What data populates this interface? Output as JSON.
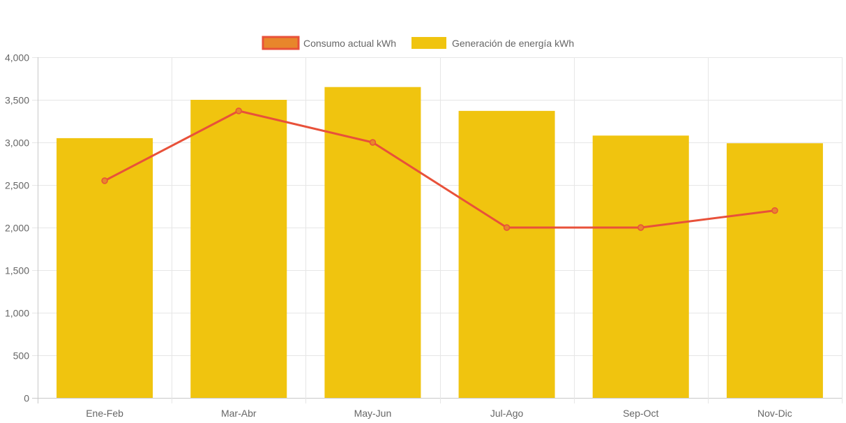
{
  "chart_data": {
    "type": "bar",
    "categories": [
      "Ene-Feb",
      "Mar-Abr",
      "May-Jun",
      "Jul-Ago",
      "Sep-Oct",
      "Nov-Dic"
    ],
    "series": [
      {
        "name": "Consumo actual kWh",
        "kind": "line",
        "values": [
          2550,
          3370,
          3000,
          2000,
          2000,
          2200
        ],
        "color": "#E8513A",
        "legend_fill": "#E8862B"
      },
      {
        "name": "Generación de energía kWh",
        "kind": "bar",
        "values": [
          3050,
          3500,
          3650,
          3370,
          3080,
          2990
        ],
        "color": "#F0C40F"
      }
    ],
    "y_ticks": [
      "0",
      "500",
      "1,000",
      "1,500",
      "2,000",
      "2,500",
      "3,000",
      "3,500",
      "4,000"
    ],
    "ylim": [
      0,
      4000
    ],
    "grid": true,
    "legend_position": "top-center",
    "title": "",
    "xlabel": "",
    "ylabel": ""
  }
}
